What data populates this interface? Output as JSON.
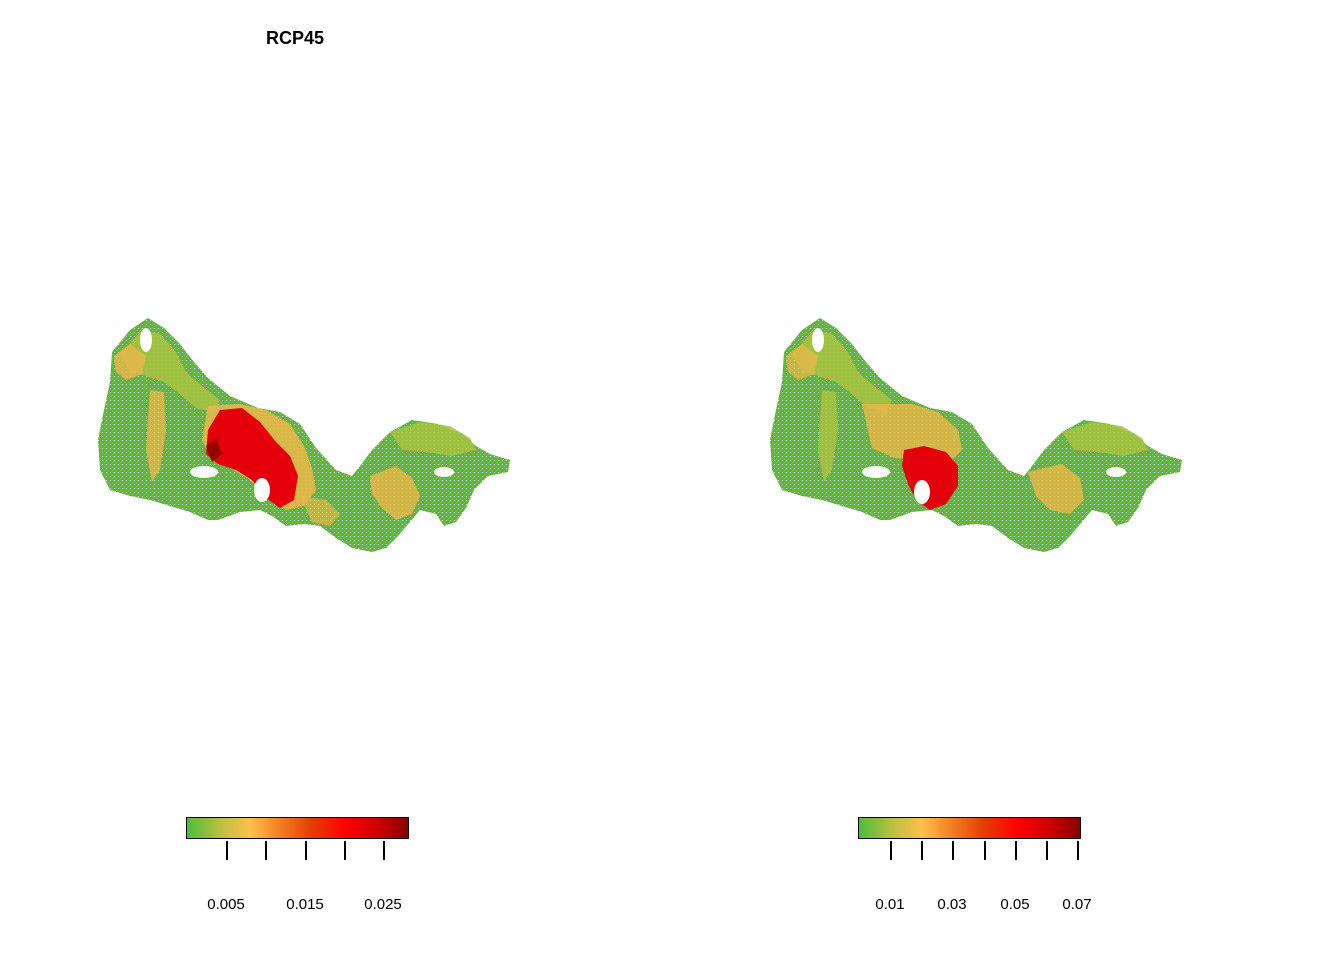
{
  "panels": [
    {
      "title": "RCP45",
      "legend": {
        "ticks": [
          "0.005",
          "0.015",
          "0.025"
        ],
        "colors": [
          "#4cbd3f",
          "#b5c040",
          "#ffc04a",
          "#f07c20",
          "#e53b00",
          "#ff0000",
          "#cf0000",
          "#8b0000"
        ]
      }
    },
    {
      "title": "",
      "legend": {
        "ticks": [
          "0.01",
          "0.03",
          "0.05",
          "0.07"
        ],
        "colors": [
          "#4cbd3f",
          "#b5c040",
          "#ffc04a",
          "#f07c20",
          "#e53b00",
          "#ff0000",
          "#cf0000",
          "#8b0000"
        ]
      }
    }
  ],
  "colors": {
    "low": "#4cbd3f",
    "mid_low": "#a9c143",
    "mid": "#e8b64a",
    "high": "#e3000b",
    "max": "#8b0000"
  }
}
